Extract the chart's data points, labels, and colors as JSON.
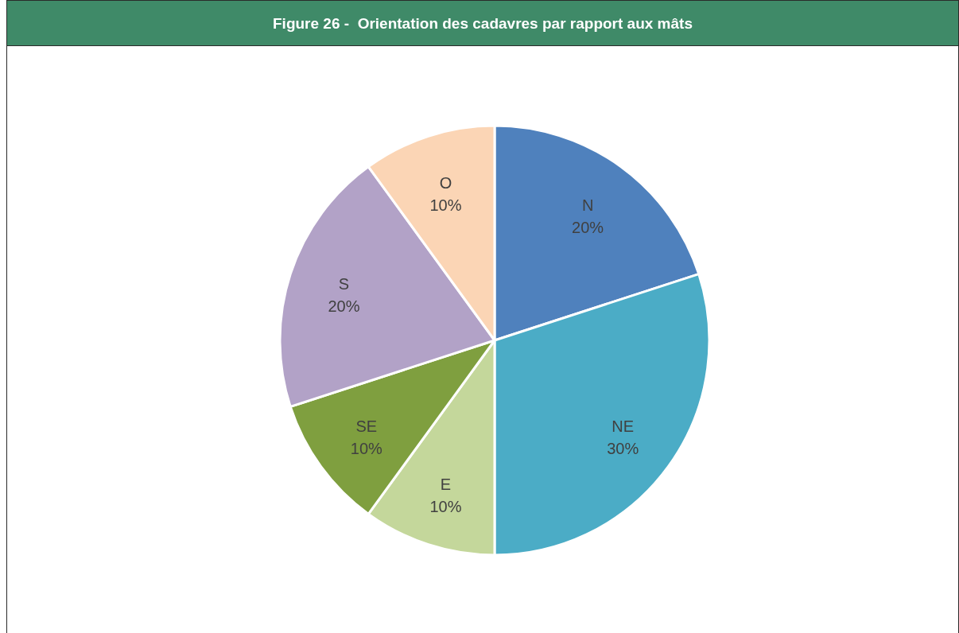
{
  "chart_data": {
    "type": "pie",
    "title": "Figure 26 -  Orientation des cadavres par rapport aux mâts",
    "categories": [
      "N",
      "NE",
      "E",
      "SE",
      "S",
      "O"
    ],
    "values": [
      20,
      30,
      10,
      10,
      20,
      10
    ],
    "value_labels": [
      "20%",
      "30%",
      "10%",
      "10%",
      "20%",
      "10%"
    ],
    "colors": [
      "#4f81bd",
      "#4bacc6",
      "#c4d79b",
      "#7f9f3f",
      "#b2a2c7",
      "#fbd5b5"
    ]
  }
}
